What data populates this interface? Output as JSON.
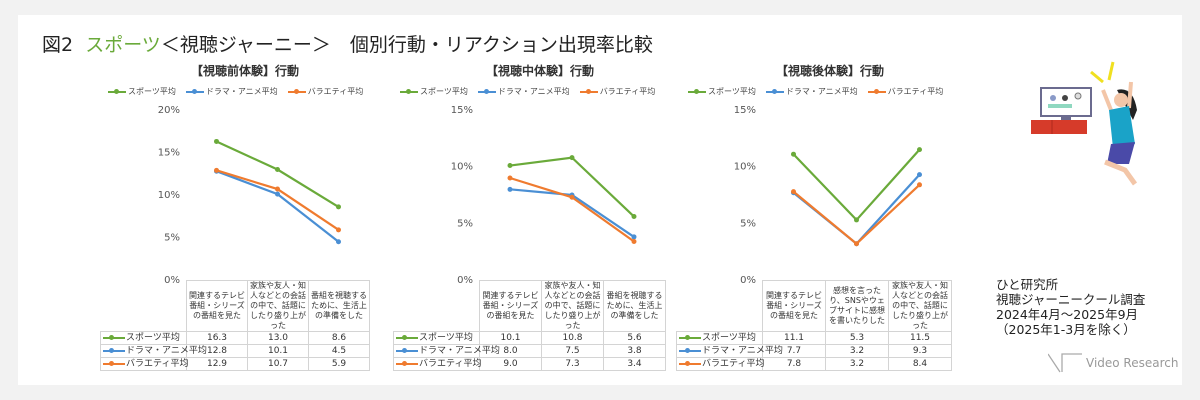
{
  "title": {
    "prefix": "図2",
    "accent": "スポーツ",
    "rest": "＜視聴ジャーニー＞　個別行動・リアクション出現率比較"
  },
  "colors": {
    "sports": "#6aaa3a",
    "drama": "#4a8fd4",
    "variety": "#ef7b2f",
    "accent": "#6aaa3a"
  },
  "source": {
    "line1": "ひと研究所",
    "line2": "視聴ジャーニークール調査",
    "line3": "2024年4月～2025年9月",
    "line4": "（2025年1-3月を除く）"
  },
  "logo": {
    "text": "Video Research"
  },
  "illustration": {
    "icon": "woman-jumping-in-front-of-tv-illustration"
  },
  "chart_data": [
    {
      "type": "line",
      "title": "【視聴前体験】行動",
      "ylim": [
        0,
        20
      ],
      "yticks": [
        "0%",
        "5%",
        "10%",
        "15%",
        "20%"
      ],
      "legend": "top",
      "grid": false,
      "categories": [
        "関連するテレビ番組・シリーズの番組を見た",
        "家族や友人・知人などとの会話の中で、話題にしたり盛り上がった",
        "番組を視聴するために、生活上の準備をした"
      ],
      "series": [
        {
          "name": "スポーツ平均",
          "values": [
            16.3,
            13.0,
            8.6
          ],
          "display": [
            "16.3",
            "13.0",
            "8.6"
          ]
        },
        {
          "name": "ドラマ・アニメ平均",
          "values": [
            12.8,
            10.1,
            4.5
          ],
          "display": [
            "12.8",
            "10.1",
            "4.5"
          ]
        },
        {
          "name": "バラエティ平均",
          "values": [
            12.9,
            10.7,
            5.9
          ],
          "display": [
            "12.9",
            "10.7",
            "5.9"
          ]
        }
      ]
    },
    {
      "type": "line",
      "title": "【視聴中体験】行動",
      "ylim": [
        0,
        15
      ],
      "yticks": [
        "0%",
        "5%",
        "10%",
        "15%"
      ],
      "legend": "top",
      "grid": false,
      "categories": [
        "関連するテレビ番組・シリーズの番組を見た",
        "家族や友人・知人などとの会話の中で、話題にしたり盛り上がった",
        "番組を視聴するために、生活上の準備をした"
      ],
      "series": [
        {
          "name": "スポーツ平均",
          "values": [
            10.1,
            10.8,
            5.6
          ],
          "display": [
            "10.1",
            "10.8",
            "5.6"
          ]
        },
        {
          "name": "ドラマ・アニメ平均",
          "values": [
            8.0,
            7.5,
            3.8
          ],
          "display": [
            "8.0",
            "7.5",
            "3.8"
          ]
        },
        {
          "name": "バラエティ平均",
          "values": [
            9.0,
            7.3,
            3.4
          ],
          "display": [
            "9.0",
            "7.3",
            "3.4"
          ]
        }
      ]
    },
    {
      "type": "line",
      "title": "【視聴後体験】行動",
      "ylim": [
        0,
        15
      ],
      "yticks": [
        "0%",
        "5%",
        "10%",
        "15%"
      ],
      "legend": "top",
      "grid": false,
      "categories": [
        "関連するテレビ番組・シリーズの番組を見た",
        "感想を言ったり、SNSやウェブサイトに感想を書いたりした",
        "家族や友人・知人などとの会話の中で、話題にしたり盛り上がった"
      ],
      "series": [
        {
          "name": "スポーツ平均",
          "values": [
            11.1,
            5.3,
            11.5
          ],
          "display": [
            "11.1",
            "5.3",
            "11.5"
          ]
        },
        {
          "name": "ドラマ・アニメ平均",
          "values": [
            7.7,
            3.2,
            9.3
          ],
          "display": [
            "7.7",
            "3.2",
            "9.3"
          ]
        },
        {
          "name": "バラエティ平均",
          "values": [
            7.8,
            3.2,
            8.4
          ],
          "display": [
            "7.8",
            "3.2",
            "8.4"
          ]
        }
      ]
    }
  ]
}
